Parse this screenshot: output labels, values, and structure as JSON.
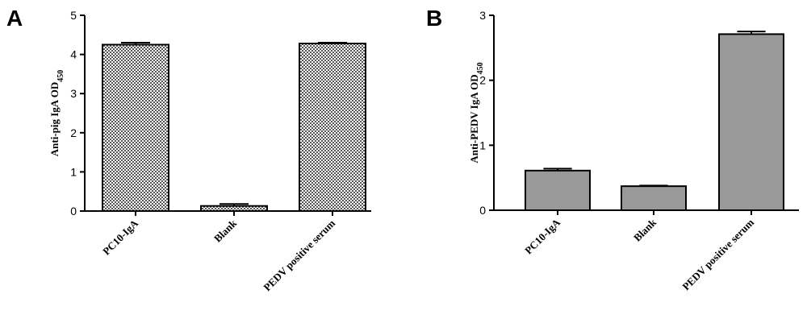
{
  "chart_data": [
    {
      "type": "bar",
      "panel": "A",
      "y_label": "Anti-pig IgA OD",
      "y_label_sub": "450",
      "categories": [
        "PC10-IgA",
        "Blank",
        "PEDV positive serum"
      ],
      "values": [
        4.25,
        0.13,
        4.28
      ],
      "errors": [
        0.05,
        0.05,
        0.02
      ],
      "color": "#555555",
      "pattern": true,
      "ylim": [
        0,
        5
      ],
      "yticks": [
        0,
        1,
        2,
        3,
        4,
        5
      ]
    },
    {
      "type": "bar",
      "panel": "B",
      "y_label": "Anti-PEDV IgA OD",
      "y_label_sub": "450",
      "categories": [
        "PC10-IgA",
        "Blank",
        "PEDV positive serum"
      ],
      "values": [
        0.61,
        0.37,
        2.71
      ],
      "errors": [
        0.03,
        0.01,
        0.04
      ],
      "color": "#999999",
      "pattern": false,
      "ylim": [
        0,
        3
      ],
      "yticks": [
        0,
        1,
        2,
        3
      ]
    }
  ]
}
